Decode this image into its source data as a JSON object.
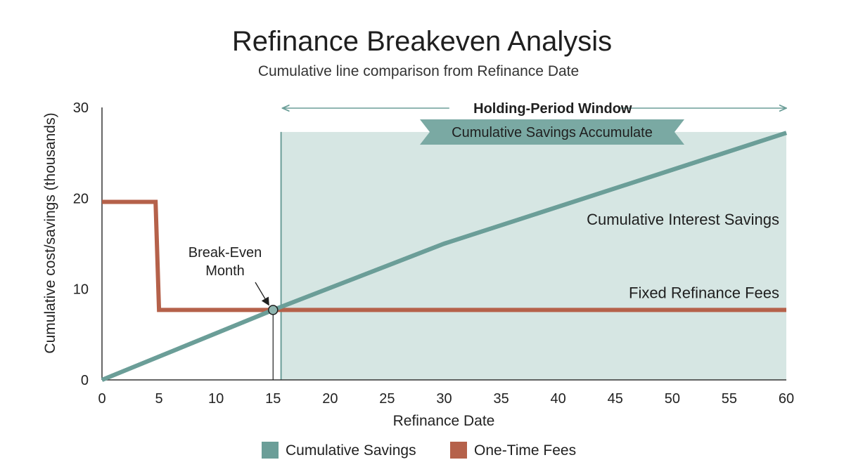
{
  "chart_data": {
    "type": "line",
    "title": "Refinance Breakeven Analysis",
    "subtitle": "Cumulative line comparison from Refinance Date",
    "xlabel": "Refinance Date",
    "ylabel": "Cumulative cost/savings (thousands)",
    "xlim": [
      0,
      60
    ],
    "ylim": [
      0,
      30
    ],
    "xticks": [
      0,
      5,
      10,
      15,
      20,
      25,
      30,
      35,
      40,
      45,
      50,
      55,
      60
    ],
    "yticks": [
      0,
      10,
      20,
      30
    ],
    "grid": false,
    "legend_position": "bottom-center",
    "series": [
      {
        "name": "Cumulative Savings",
        "color": "#6b9e98",
        "points": [
          [
            0,
            0
          ],
          [
            15,
            7.7
          ],
          [
            30,
            15
          ],
          [
            60,
            27.2
          ]
        ]
      },
      {
        "name": "One-Time Fees",
        "color": "#b5614a",
        "points": [
          [
            0,
            19.6
          ],
          [
            4.7,
            19.6
          ],
          [
            5,
            7.7
          ],
          [
            60,
            7.7
          ]
        ]
      }
    ],
    "shaded_region": {
      "x": [
        15.7,
        60
      ],
      "y_top": 27.3,
      "color": "#d6e6e3",
      "label": "Cumulative Savings Accumulate",
      "window_label": "Holding-Period Window"
    },
    "breakeven": {
      "x": 15,
      "y": 7.7,
      "label_line1": "Break-Even",
      "label_line2": "Month"
    },
    "annotations": {
      "savings_line": "Cumulative Interest Savings",
      "fees_line": "Fixed Refinance Fees"
    }
  }
}
